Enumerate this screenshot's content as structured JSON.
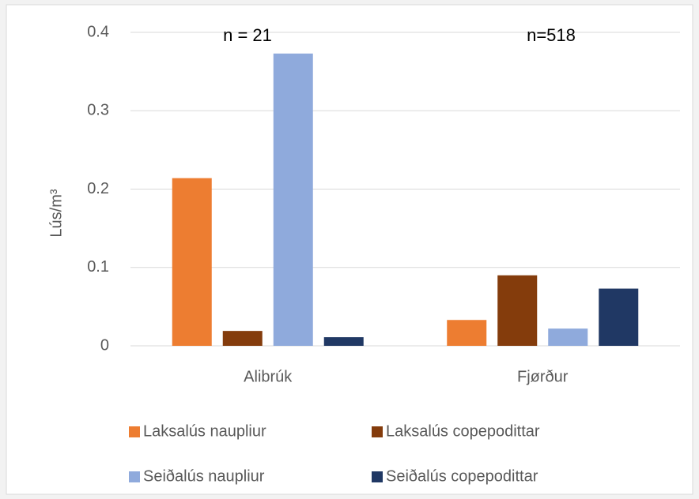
{
  "chart_data": {
    "type": "bar",
    "y_label": "Lús/m³",
    "annotations": [
      "n = 21",
      "n=518"
    ],
    "categories": [
      "Alibrúk",
      "Fjørður"
    ],
    "series": [
      {
        "name": "Laksalús naupliur",
        "color": "#ed7d31",
        "values": [
          0.214,
          0.033
        ]
      },
      {
        "name": "Laksalús copepodittar",
        "color": "#843c0c",
        "values": [
          0.019,
          0.09
        ]
      },
      {
        "name": "Seiðalús naupliur",
        "color": "#8faadc",
        "values": [
          0.373,
          0.022
        ]
      },
      {
        "name": "Seiðalús copepodittar",
        "color": "#203864",
        "values": [
          0.011,
          0.073
        ]
      }
    ],
    "ylim": [
      0,
      0.4
    ],
    "yticks": [
      0,
      0.1,
      0.2,
      0.3,
      0.4
    ],
    "grid": true,
    "legend": "bottom"
  }
}
